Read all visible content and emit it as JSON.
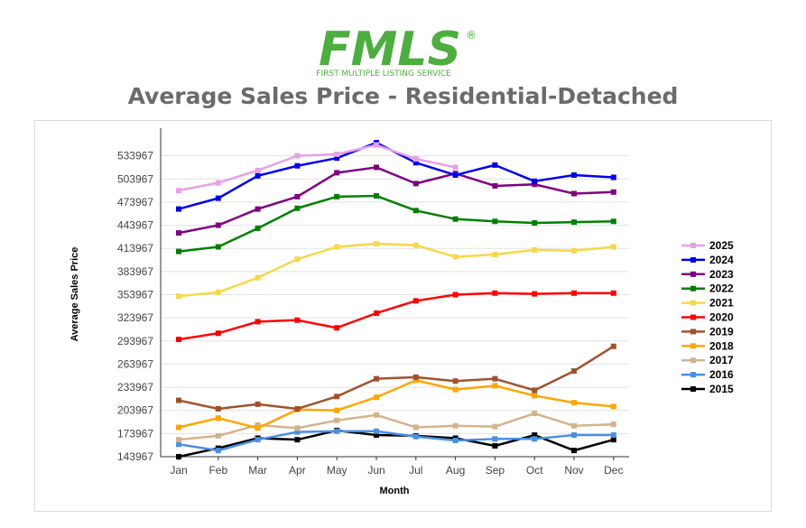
{
  "logo": {
    "wordmark": "FMLS",
    "subtitle": "FIRST MULTIPLE LISTING SERVICE",
    "registered": "®",
    "color": "#4cae3e"
  },
  "chart_data": {
    "type": "line",
    "title": "Average Sales Price - Residential-Detached",
    "xlabel": "Month",
    "ylabel": "Average Sales Price",
    "categories": [
      "Jan",
      "Feb",
      "Mar",
      "Apr",
      "May",
      "Jun",
      "Jul",
      "Aug",
      "Sep",
      "Oct",
      "Nov",
      "Dec"
    ],
    "ylim": [
      143967,
      563967
    ],
    "yticks": [
      143967,
      173967,
      203967,
      233967,
      263967,
      293967,
      323967,
      353967,
      383967,
      413967,
      443967,
      473967,
      503967,
      533967
    ],
    "legend_position": "right",
    "series": [
      {
        "name": "2025",
        "color": "#e8a0e8",
        "values": [
          489000,
          499000,
          515000,
          534000,
          536000,
          548000,
          530000,
          519000,
          null,
          null,
          null,
          null
        ]
      },
      {
        "name": "2024",
        "color": "#0000ee",
        "values": [
          465000,
          479000,
          508000,
          521000,
          531000,
          551000,
          525000,
          509000,
          522000,
          501000,
          509000,
          506000
        ]
      },
      {
        "name": "2023",
        "color": "#800080",
        "values": [
          434000,
          444000,
          465000,
          481000,
          512000,
          519000,
          498000,
          511000,
          495000,
          497000,
          485000,
          487000
        ]
      },
      {
        "name": "2022",
        "color": "#008000",
        "values": [
          410000,
          416000,
          440000,
          466000,
          481000,
          482000,
          463000,
          452000,
          449000,
          447000,
          448000,
          449000
        ]
      },
      {
        "name": "2021",
        "color": "#f7d84a",
        "values": [
          352000,
          357000,
          376000,
          400000,
          416000,
          420000,
          418000,
          403000,
          406000,
          412000,
          411000,
          416000
        ]
      },
      {
        "name": "2020",
        "color": "#ff0000",
        "values": [
          296000,
          304000,
          319000,
          321000,
          311000,
          330000,
          346000,
          354000,
          356000,
          355000,
          356000,
          356000
        ]
      },
      {
        "name": "2019",
        "color": "#a0522d",
        "values": [
          217000,
          206000,
          212000,
          206000,
          222000,
          245000,
          247000,
          242000,
          245000,
          230000,
          255000,
          287000
        ]
      },
      {
        "name": "2018",
        "color": "#ffa500",
        "values": [
          182000,
          194000,
          181000,
          205000,
          204000,
          221000,
          243000,
          231000,
          236000,
          223000,
          214000,
          209000
        ]
      },
      {
        "name": "2017",
        "color": "#d2b48c",
        "values": [
          166000,
          171000,
          185000,
          181000,
          191000,
          198000,
          182000,
          184000,
          183000,
          200000,
          184000,
          186000
        ]
      },
      {
        "name": "2016",
        "color": "#4a90e2",
        "values": [
          160000,
          152000,
          166000,
          176000,
          177000,
          177000,
          170000,
          165000,
          167000,
          167000,
          172000,
          172000
        ]
      },
      {
        "name": "2015",
        "color": "#000000",
        "values": [
          144000,
          155000,
          168000,
          166000,
          178000,
          172000,
          171000,
          168000,
          158000,
          172000,
          152000,
          166000
        ]
      }
    ]
  }
}
